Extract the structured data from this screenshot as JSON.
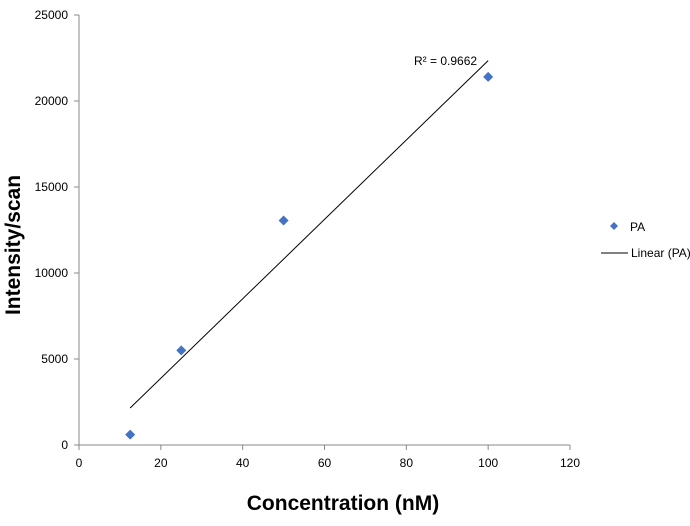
{
  "chart_data": {
    "type": "scatter",
    "title": "",
    "xlabel": "Concentration (nM)",
    "ylabel": "Intensity/scan",
    "xlim": [
      0,
      120
    ],
    "ylim": [
      0,
      25000
    ],
    "x_ticks": [
      0,
      20,
      40,
      60,
      80,
      100,
      120
    ],
    "y_ticks": [
      0,
      5000,
      10000,
      15000,
      20000,
      25000
    ],
    "grid": false,
    "legend_position": "right",
    "series": [
      {
        "name": "PA",
        "marker": "diamond",
        "color": "#4472C4",
        "x": [
          12.5,
          25,
          50,
          100
        ],
        "y": [
          600,
          5500,
          13050,
          21400
        ]
      }
    ],
    "trendline": {
      "name": "Linear (PA)",
      "color": "#000000",
      "x": [
        12.5,
        100
      ],
      "y": [
        2150,
        22350
      ],
      "annotation": "R² = 0.9662"
    }
  }
}
